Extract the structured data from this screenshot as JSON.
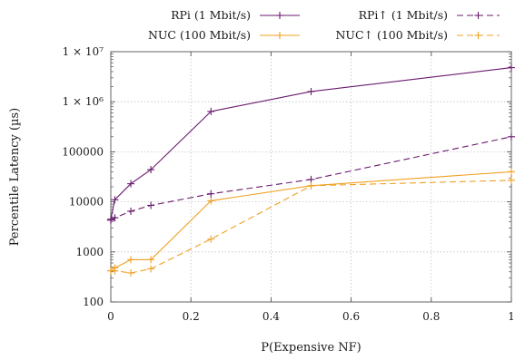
{
  "chart_data": {
    "type": "line",
    "title": "",
    "xlabel": "P(Expensive NF)",
    "ylabel": "Percentile Latency (µs)",
    "xlim": [
      0,
      1
    ],
    "ylim": [
      100,
      10000000
    ],
    "yscale": "log",
    "grid": true,
    "legend_position": "top",
    "x_ticks": [
      0,
      0.2,
      0.4,
      0.6,
      0.8,
      1
    ],
    "x_tick_labels": [
      "0",
      "0.2",
      "0.4",
      "0.6",
      "0.8",
      "1"
    ],
    "y_ticks": [
      100,
      1000,
      10000,
      100000,
      1000000,
      10000000
    ],
    "y_tick_labels": [
      "100",
      "1000",
      "10000",
      "100000",
      "1 × 10⁶",
      "1 × 10⁷"
    ],
    "series": [
      {
        "name": "RPi (1 Mbit/s)",
        "color": "#6a1b6e",
        "dash": "solid",
        "x": [
          0,
          0.01,
          0.05,
          0.1,
          0.25,
          0.5,
          1
        ],
        "y": [
          4500,
          11000,
          23000,
          44000,
          640000,
          1600000,
          4800000
        ]
      },
      {
        "name": "NUC (100 Mbit/s)",
        "color": "#f0a020",
        "dash": "solid",
        "x": [
          0,
          0.01,
          0.05,
          0.1,
          0.25,
          0.5,
          1
        ],
        "y": [
          420,
          480,
          700,
          700,
          10500,
          21000,
          40000
        ]
      },
      {
        "name": "RPi↑ (1 Mbit/s)",
        "color": "#6a1b6e",
        "dash": "dashed",
        "x": [
          0,
          0.01,
          0.05,
          0.1,
          0.25,
          0.5,
          1
        ],
        "y": [
          4300,
          4800,
          6500,
          8500,
          14500,
          28000,
          200000
        ]
      },
      {
        "name": "NUC↑ (100 Mbit/s)",
        "color": "#f0a020",
        "dash": "dashed",
        "x": [
          0,
          0.01,
          0.05,
          0.1,
          0.25,
          0.5,
          1
        ],
        "y": [
          420,
          420,
          380,
          460,
          1800,
          21000,
          27000
        ]
      }
    ]
  }
}
